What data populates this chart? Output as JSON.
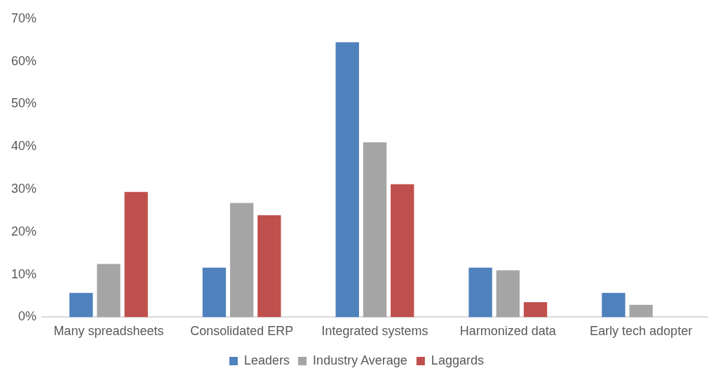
{
  "chart_data": {
    "type": "bar",
    "categories": [
      "Many spreadsheets",
      "Consolidated ERP",
      "Integrated systems",
      "Harmonized data",
      "Early tech adopter"
    ],
    "series": [
      {
        "name": "Leaders",
        "color": "#4f81bd",
        "values": [
          5.7,
          11.6,
          64.5,
          11.6,
          5.7
        ]
      },
      {
        "name": "Industry Average",
        "color": "#a5a5a5",
        "values": [
          12.5,
          26.8,
          41.0,
          11.0,
          2.9
        ]
      },
      {
        "name": "Laggards",
        "color": "#c0504d",
        "values": [
          29.4,
          23.9,
          31.2,
          3.5,
          null
        ]
      }
    ],
    "ylim": [
      0,
      70
    ],
    "yticks": [
      {
        "value": 0,
        "label": "0%"
      },
      {
        "value": 10,
        "label": "10%"
      },
      {
        "value": 20,
        "label": "20%"
      },
      {
        "value": 30,
        "label": "30%"
      },
      {
        "value": 40,
        "label": "40%"
      },
      {
        "value": 50,
        "label": "50%"
      },
      {
        "value": 60,
        "label": "60%"
      },
      {
        "value": 70,
        "label": "70%"
      }
    ],
    "grid": false,
    "legend": "bottom"
  }
}
